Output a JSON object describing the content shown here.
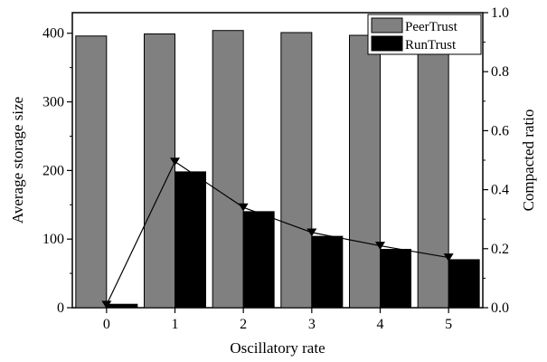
{
  "chart_data": {
    "type": "bar",
    "title": "",
    "xlabel": "Oscillatory rate",
    "ylabel": "Average storage size",
    "y2label": "Compacted ratio",
    "categories": [
      "0",
      "1",
      "2",
      "3",
      "4",
      "5"
    ],
    "ylim": [
      0,
      430
    ],
    "y2lim": [
      0.0,
      1.0
    ],
    "yticks": [
      "0",
      "100",
      "200",
      "300",
      "400"
    ],
    "y2ticks": [
      "0.0",
      "0.2",
      "0.4",
      "0.6",
      "0.8",
      "1.0"
    ],
    "legend_position": "top-right",
    "series": [
      {
        "name": "PeerTrust",
        "kind": "bar",
        "axis": "left",
        "color": "#808080",
        "values": [
          396,
          399,
          404,
          401,
          397,
          395
        ]
      },
      {
        "name": "RunTrust",
        "kind": "bar",
        "axis": "left",
        "color": "#000000",
        "values": [
          5,
          198,
          140,
          104,
          85,
          70
        ]
      },
      {
        "kind": "line",
        "axis": "right",
        "marker": "triangle-down",
        "color": "#000000",
        "values": [
          0.01,
          0.495,
          0.34,
          0.255,
          0.21,
          0.17
        ]
      }
    ]
  }
}
